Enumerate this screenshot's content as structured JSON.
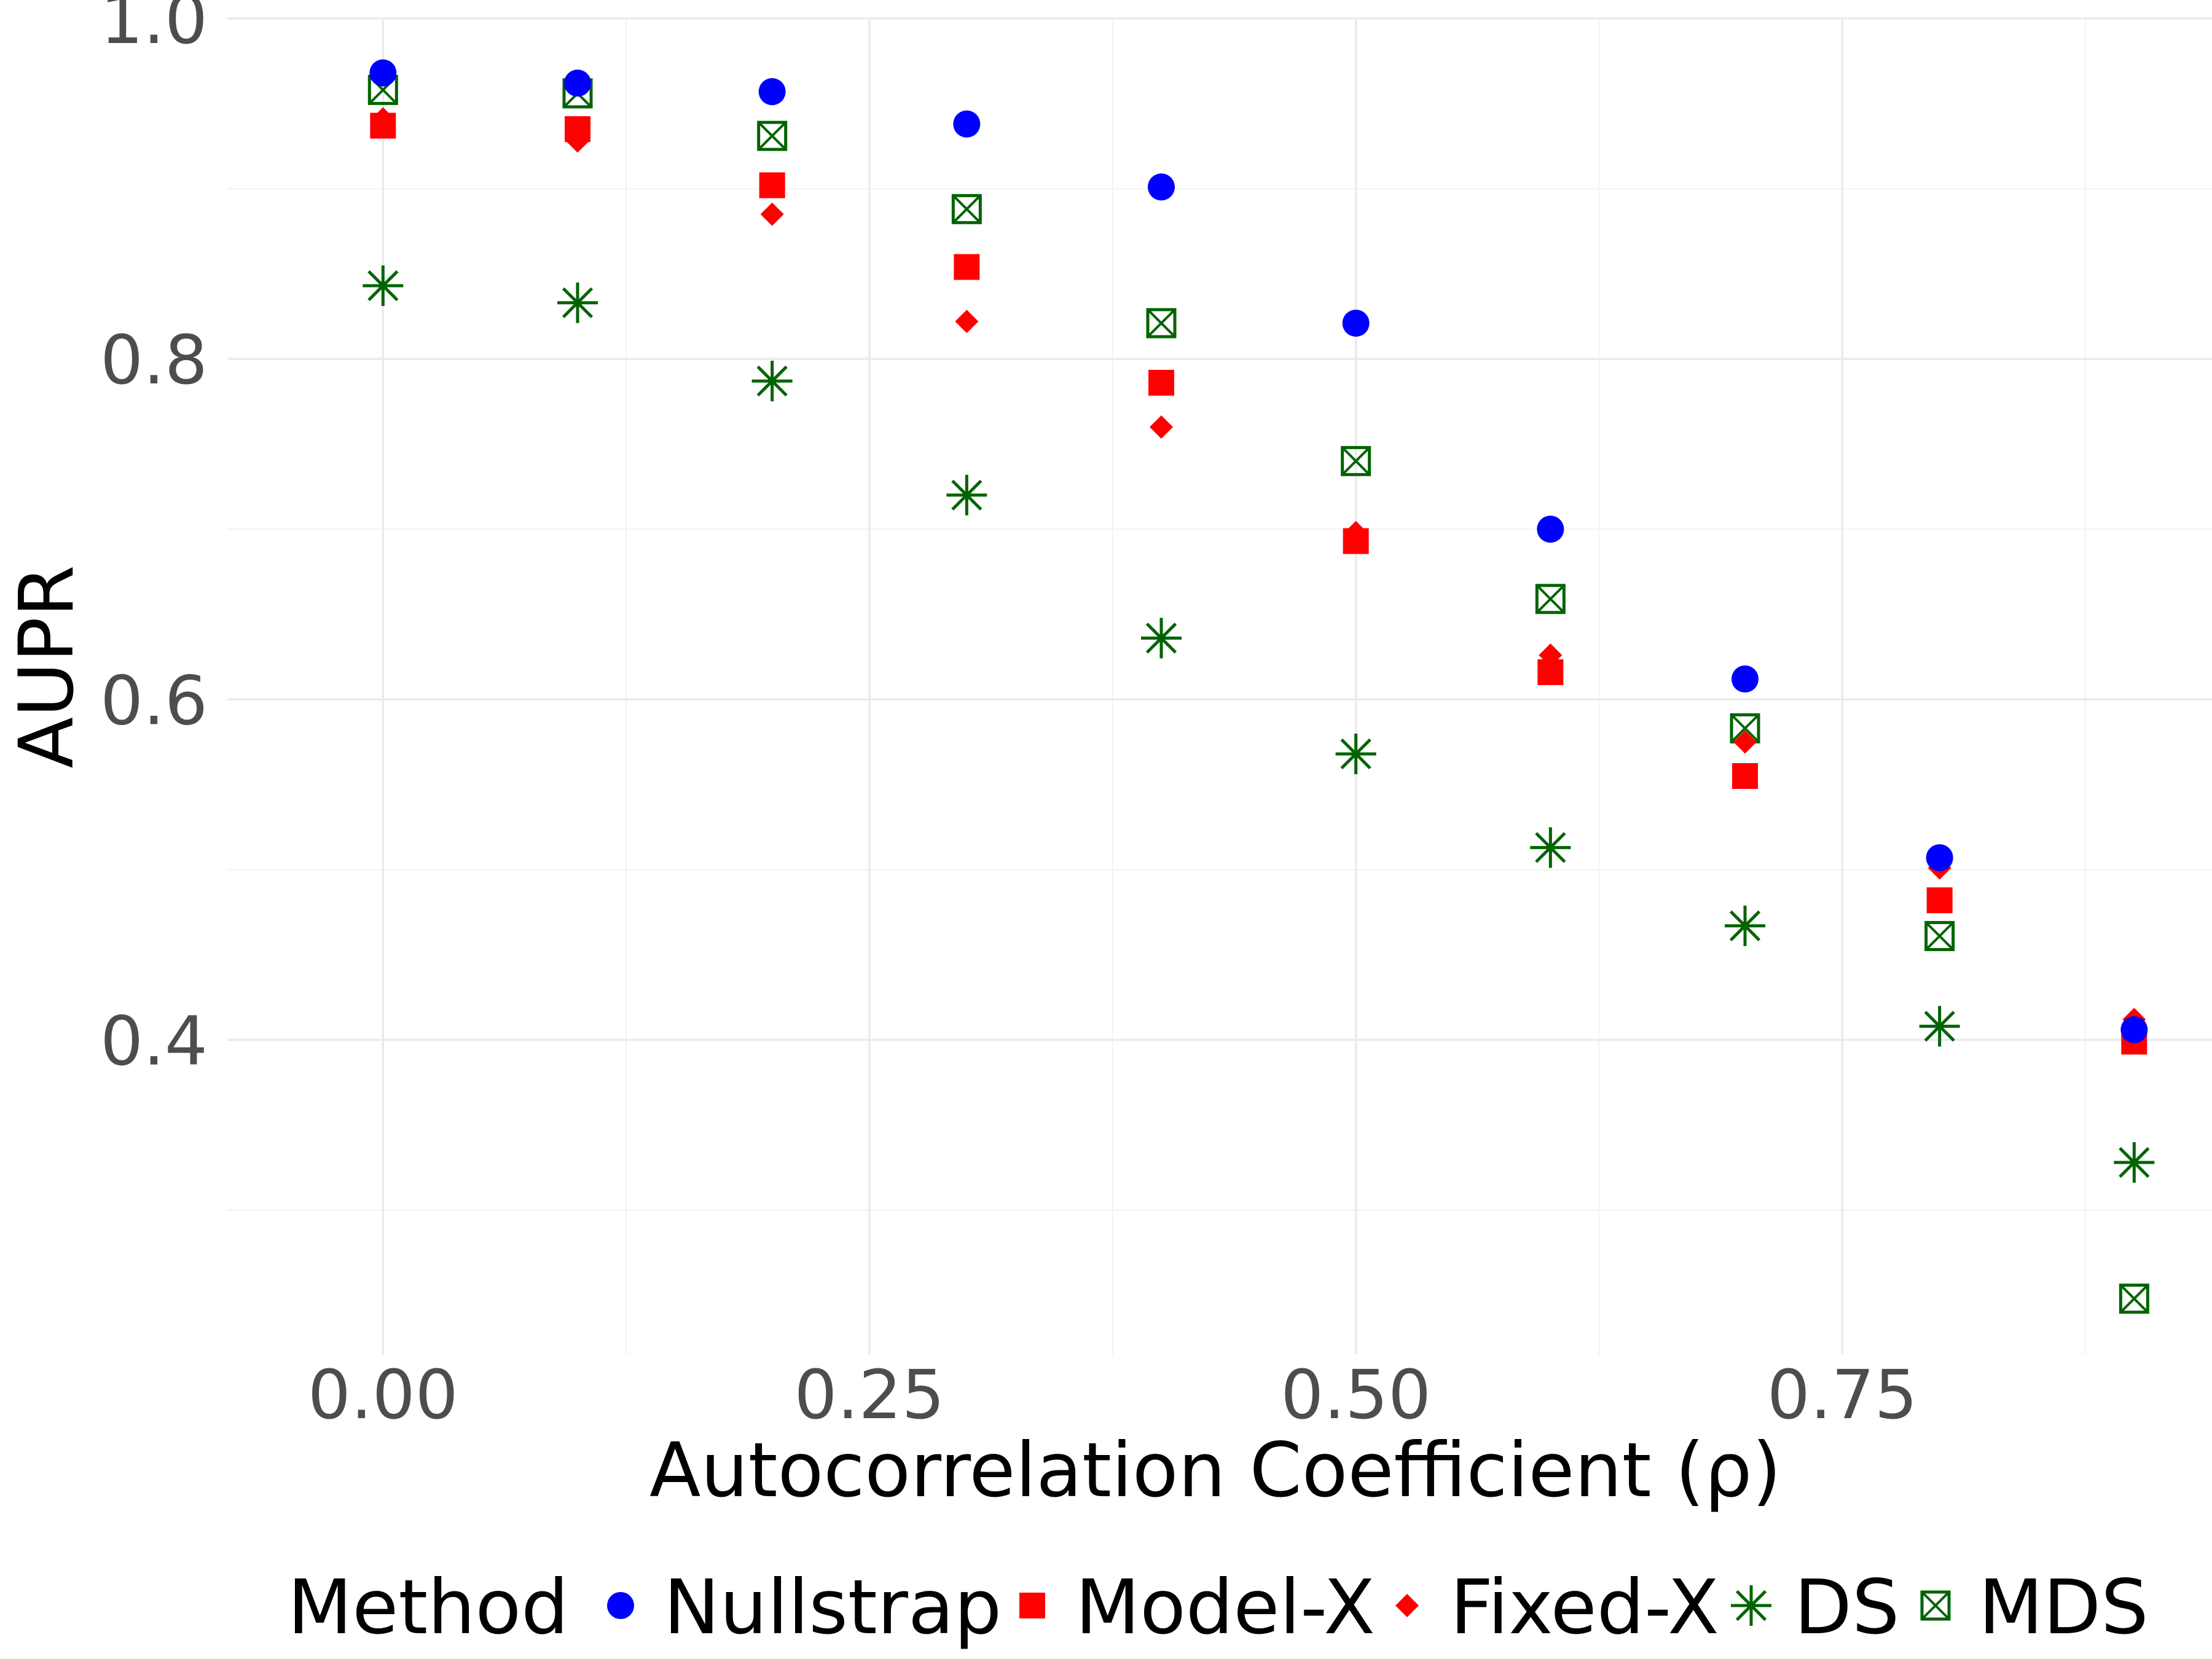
{
  "chart_data": {
    "type": "scatter",
    "title": "",
    "xlabel": "Autocorrelation Coefficient (ρ)",
    "ylabel": "AUPR",
    "xlim": [
      -0.08,
      0.94
    ],
    "ylim": [
      0.215,
      1.0
    ],
    "x_ticks": [
      0.0,
      0.25,
      0.5,
      0.75
    ],
    "x_tick_labels": [
      "0.00",
      "0.25",
      "0.50",
      "0.75"
    ],
    "y_ticks": [
      0.4,
      0.6,
      0.8,
      1.0
    ],
    "y_tick_labels": [
      "0.4",
      "0.6",
      "0.8",
      "1.0"
    ],
    "grid": true,
    "legend_title": "Method",
    "legend_position": "bottom",
    "x": [
      0.0,
      0.1,
      0.2,
      0.3,
      0.4,
      0.5,
      0.6,
      0.7,
      0.8,
      0.9
    ],
    "series": [
      {
        "name": "Nullstrap",
        "shape": "circle",
        "color": "#0000ff",
        "values": [
          0.968,
          0.962,
          0.957,
          0.938,
          0.901,
          0.821,
          0.7,
          0.612,
          0.507,
          0.406
        ]
      },
      {
        "name": "Model-X",
        "shape": "square",
        "color": "#ff0000",
        "values": [
          0.937,
          0.935,
          0.902,
          0.854,
          0.786,
          0.693,
          0.616,
          0.555,
          0.482,
          0.399
        ]
      },
      {
        "name": "Fixed-X",
        "shape": "diamond",
        "color": "#ff0000",
        "values": [
          0.941,
          0.928,
          0.885,
          0.822,
          0.76,
          0.698,
          0.626,
          0.575,
          0.501,
          0.412
        ]
      },
      {
        "name": "DS",
        "shape": "star",
        "color": "#006400",
        "values": [
          0.843,
          0.833,
          0.787,
          0.72,
          0.636,
          0.568,
          0.513,
          0.467,
          0.408,
          0.328
        ]
      },
      {
        "name": "MDS",
        "shape": "boxcross",
        "color": "#006400",
        "values": [
          0.958,
          0.956,
          0.931,
          0.888,
          0.821,
          0.74,
          0.659,
          0.583,
          0.461,
          0.248
        ]
      }
    ]
  }
}
